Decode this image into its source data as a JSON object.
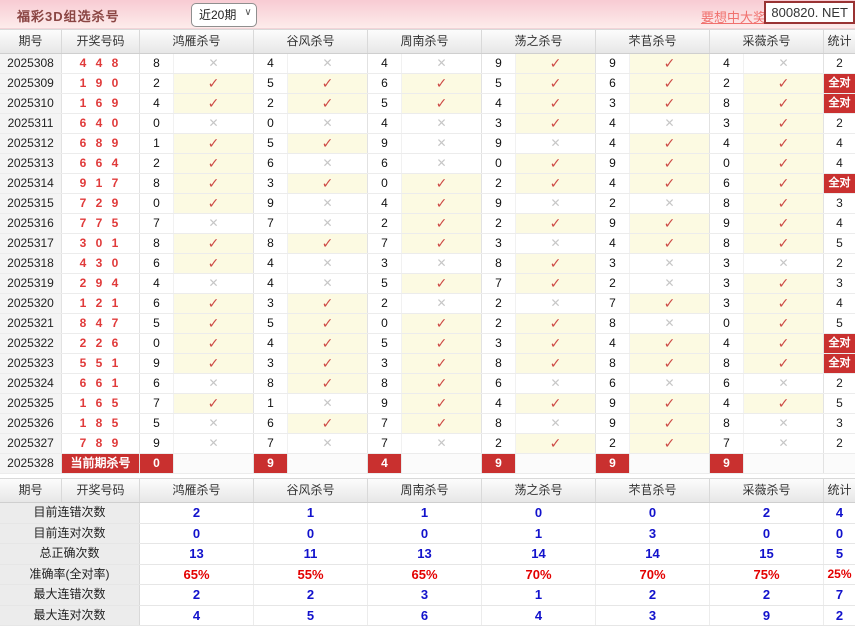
{
  "app": {
    "title": "福彩3D组选杀号",
    "range_value": "近20期",
    "promo_link": "要想中大奖，天",
    "site_box": "800820. NET"
  },
  "icons": {
    "check": "✓",
    "cross": "✕",
    "select_arrow": "∨"
  },
  "colors": {
    "accent_red": "#c9302f",
    "draw_red": "#e03a3a",
    "correct_bg": "#fcfae2",
    "stat_blue": "#1212cc",
    "stat_red": "#e30000",
    "topbar_pink": "#f8cbd3"
  },
  "table": {
    "headers": [
      "期号",
      "开奖号码",
      "鸿雁杀号",
      "谷风杀号",
      "周南杀号",
      "荡之杀号",
      "芣苢杀号",
      "采薇杀号",
      "统计"
    ],
    "full_correct_label": "全对",
    "rows": [
      {
        "period": "2025308",
        "draw": "4 4 8",
        "kills": [
          "8",
          "4",
          "4",
          "9",
          "9",
          "4"
        ],
        "marks": [
          0,
          0,
          0,
          1,
          1,
          0
        ],
        "stat": "2"
      },
      {
        "period": "2025309",
        "draw": "1 9 0",
        "kills": [
          "2",
          "5",
          "6",
          "5",
          "6",
          "2"
        ],
        "marks": [
          1,
          1,
          1,
          1,
          1,
          1
        ],
        "stat": "全对"
      },
      {
        "period": "2025310",
        "draw": "1 6 9",
        "kills": [
          "4",
          "2",
          "5",
          "4",
          "3",
          "8"
        ],
        "marks": [
          1,
          1,
          1,
          1,
          1,
          1
        ],
        "stat": "全对"
      },
      {
        "period": "2025311",
        "draw": "6 4 0",
        "kills": [
          "0",
          "0",
          "4",
          "3",
          "4",
          "3"
        ],
        "marks": [
          0,
          0,
          0,
          1,
          0,
          1
        ],
        "stat": "2"
      },
      {
        "period": "2025312",
        "draw": "6 8 9",
        "kills": [
          "1",
          "5",
          "9",
          "9",
          "4",
          "4"
        ],
        "marks": [
          1,
          1,
          0,
          0,
          1,
          1
        ],
        "stat": "4"
      },
      {
        "period": "2025313",
        "draw": "6 6 4",
        "kills": [
          "2",
          "6",
          "6",
          "0",
          "9",
          "0"
        ],
        "marks": [
          1,
          0,
          0,
          1,
          1,
          1
        ],
        "stat": "4"
      },
      {
        "period": "2025314",
        "draw": "9 1 7",
        "kills": [
          "8",
          "3",
          "0",
          "2",
          "4",
          "6"
        ],
        "marks": [
          1,
          1,
          1,
          1,
          1,
          1
        ],
        "stat": "全对"
      },
      {
        "period": "2025315",
        "draw": "7 2 9",
        "kills": [
          "0",
          "9",
          "4",
          "9",
          "2",
          "8"
        ],
        "marks": [
          1,
          0,
          1,
          0,
          0,
          1
        ],
        "stat": "3"
      },
      {
        "period": "2025316",
        "draw": "7 7 5",
        "kills": [
          "7",
          "7",
          "2",
          "2",
          "9",
          "9"
        ],
        "marks": [
          0,
          0,
          1,
          1,
          1,
          1
        ],
        "stat": "4"
      },
      {
        "period": "2025317",
        "draw": "3 0 1",
        "kills": [
          "8",
          "8",
          "7",
          "3",
          "4",
          "8"
        ],
        "marks": [
          1,
          1,
          1,
          0,
          1,
          1
        ],
        "stat": "5"
      },
      {
        "period": "2025318",
        "draw": "4 3 0",
        "kills": [
          "6",
          "4",
          "3",
          "8",
          "3",
          "3"
        ],
        "marks": [
          1,
          0,
          0,
          1,
          0,
          0
        ],
        "stat": "2"
      },
      {
        "period": "2025319",
        "draw": "2 9 4",
        "kills": [
          "4",
          "4",
          "5",
          "7",
          "2",
          "3"
        ],
        "marks": [
          0,
          0,
          1,
          1,
          0,
          1
        ],
        "stat": "3"
      },
      {
        "period": "2025320",
        "draw": "1 2 1",
        "kills": [
          "6",
          "3",
          "2",
          "2",
          "7",
          "3"
        ],
        "marks": [
          1,
          1,
          0,
          0,
          1,
          1
        ],
        "stat": "4"
      },
      {
        "period": "2025321",
        "draw": "8 4 7",
        "kills": [
          "5",
          "5",
          "0",
          "2",
          "8",
          "0"
        ],
        "marks": [
          1,
          1,
          1,
          1,
          0,
          1
        ],
        "stat": "5"
      },
      {
        "period": "2025322",
        "draw": "2 2 6",
        "kills": [
          "0",
          "4",
          "5",
          "3",
          "4",
          "4"
        ],
        "marks": [
          1,
          1,
          1,
          1,
          1,
          1
        ],
        "stat": "全对"
      },
      {
        "period": "2025323",
        "draw": "5 5 1",
        "kills": [
          "9",
          "3",
          "3",
          "8",
          "8",
          "8"
        ],
        "marks": [
          1,
          1,
          1,
          1,
          1,
          1
        ],
        "stat": "全对"
      },
      {
        "period": "2025324",
        "draw": "6 6 1",
        "kills": [
          "6",
          "8",
          "8",
          "6",
          "6",
          "6"
        ],
        "marks": [
          0,
          1,
          1,
          0,
          0,
          0
        ],
        "stat": "2"
      },
      {
        "period": "2025325",
        "draw": "1 6 5",
        "kills": [
          "7",
          "1",
          "9",
          "4",
          "9",
          "4"
        ],
        "marks": [
          1,
          0,
          1,
          1,
          1,
          1
        ],
        "stat": "5"
      },
      {
        "period": "2025326",
        "draw": "1 8 5",
        "kills": [
          "5",
          "6",
          "7",
          "8",
          "9",
          "8"
        ],
        "marks": [
          0,
          1,
          1,
          0,
          1,
          0
        ],
        "stat": "3"
      },
      {
        "period": "2025327",
        "draw": "7 8 9",
        "kills": [
          "9",
          "7",
          "7",
          "2",
          "2",
          "7"
        ],
        "marks": [
          0,
          0,
          0,
          1,
          1,
          0
        ],
        "stat": "2"
      }
    ],
    "current": {
      "period": "2025328",
      "label": "当前期杀号",
      "kills": [
        "0",
        "9",
        "4",
        "9",
        "9",
        "9"
      ],
      "stat": ""
    }
  },
  "stats": {
    "rows": [
      {
        "label": "目前连错次数",
        "values": [
          "2",
          "1",
          "1",
          "0",
          "0",
          "2",
          "4"
        ],
        "style": "blue"
      },
      {
        "label": "目前连对次数",
        "values": [
          "0",
          "0",
          "0",
          "1",
          "3",
          "0",
          "0"
        ],
        "style": "blue"
      },
      {
        "label": "总正确次数",
        "values": [
          "13",
          "11",
          "13",
          "14",
          "14",
          "15",
          "5"
        ],
        "style": "blue"
      },
      {
        "label": "准确率(全对率)",
        "values": [
          "65%",
          "55%",
          "65%",
          "70%",
          "70%",
          "75%",
          "25%"
        ],
        "style": "red"
      },
      {
        "label": "最大连错次数",
        "values": [
          "2",
          "2",
          "3",
          "1",
          "2",
          "2",
          "7"
        ],
        "style": "blue"
      },
      {
        "label": "最大连对次数",
        "values": [
          "4",
          "5",
          "6",
          "4",
          "3",
          "9",
          "2"
        ],
        "style": "blue"
      }
    ]
  }
}
